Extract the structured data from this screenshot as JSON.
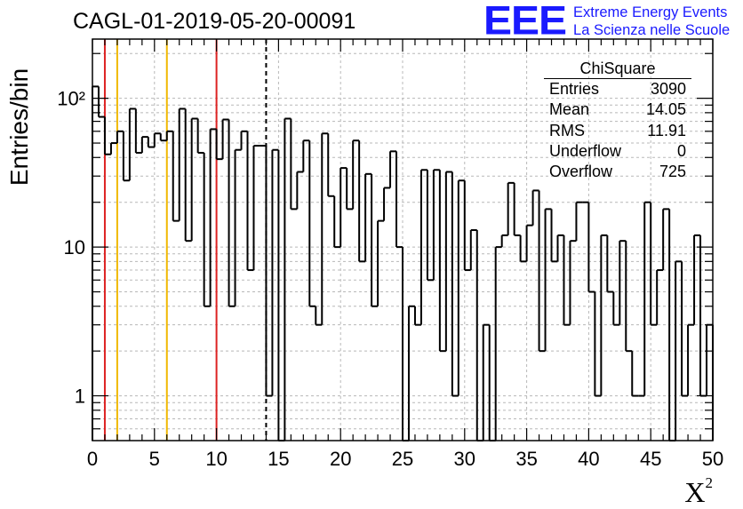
{
  "title": "CAGL-01-2019-05-20-00091",
  "logo": {
    "mark": "EEE",
    "line1": "Extreme Energy Events",
    "line2": "La Scienza nelle Scuole"
  },
  "stats_box": {
    "header": "ChiSquare",
    "rows": [
      {
        "label": "Entries",
        "value": "3090"
      },
      {
        "label": "Mean",
        "value": "14.05"
      },
      {
        "label": "RMS",
        "value": "11.91"
      },
      {
        "label": "Underflow",
        "value": "0"
      },
      {
        "label": "Overflow",
        "value": "725"
      }
    ]
  },
  "chart_data": {
    "type": "histogram",
    "xlabel": "X",
    "xlabel_superscript": "2",
    "ylabel": "Entries/bin",
    "x_range": [
      0,
      50
    ],
    "y_range": [
      0.5,
      250
    ],
    "y_scale": "log",
    "grid": true,
    "bin_width": 0.5,
    "x_ticks": [
      0,
      5,
      10,
      15,
      20,
      25,
      30,
      35,
      40,
      45,
      50
    ],
    "x_tick_labels": [
      "0",
      "5",
      "10",
      "15",
      "20",
      "25",
      "30",
      "35",
      "40",
      "45",
      "50"
    ],
    "y_ticks": [
      1,
      10,
      100
    ],
    "y_tick_labels": [
      "1",
      "10",
      "10²"
    ],
    "values": [
      120,
      75,
      42,
      50,
      60,
      28,
      85,
      43,
      55,
      47,
      58,
      52,
      60,
      15,
      85,
      11,
      73,
      43,
      4,
      62,
      39,
      72,
      4,
      45,
      60,
      7,
      48,
      48,
      1,
      45,
      0,
      73,
      18,
      32,
      52,
      4,
      3,
      58,
      22,
      10,
      34,
      18,
      52,
      8,
      31,
      4,
      15,
      25,
      44,
      10,
      0,
      4,
      3,
      33,
      6,
      33,
      2,
      32,
      1,
      28,
      7,
      13,
      0,
      3,
      0,
      10,
      12,
      27,
      12,
      8,
      14,
      24,
      2,
      18,
      8,
      12,
      3,
      11,
      20,
      20,
      5,
      1,
      12,
      5,
      3,
      11,
      2,
      1,
      1,
      20,
      3,
      7,
      18,
      0,
      8,
      1,
      3,
      12,
      1,
      3
    ],
    "vertical_lines": [
      {
        "x": 1,
        "color": "#dd2222",
        "style": "solid"
      },
      {
        "x": 2,
        "color": "#f0b800",
        "style": "solid"
      },
      {
        "x": 6,
        "color": "#f0b800",
        "style": "solid"
      },
      {
        "x": 10,
        "color": "#dd2222",
        "style": "solid"
      },
      {
        "x": 14,
        "color": "#000000",
        "style": "dashed"
      }
    ]
  }
}
